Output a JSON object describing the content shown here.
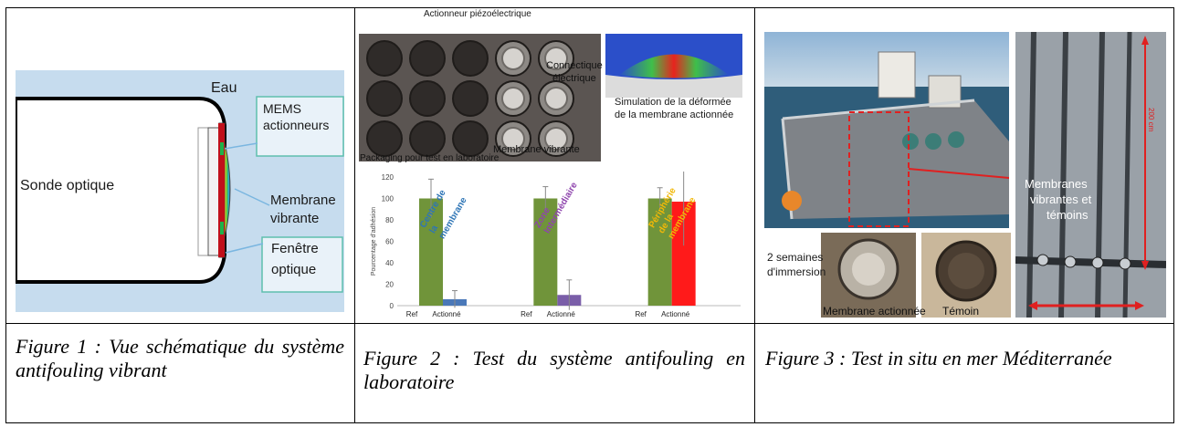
{
  "fig1": {
    "eau": "Eau",
    "sonde": "Sonde optique",
    "mems_1": "MEMS",
    "mems_2": "actionneurs",
    "membrane_1": "Membrane",
    "membrane_2": "vibrante",
    "fenetre_1": "Fenêtre",
    "fenetre_2": "optique",
    "colors": {
      "water": "#c6dcee",
      "box_border": "#5fbfae"
    }
  },
  "fig2": {
    "actionneur": "Actionneur piézoélectrique",
    "connectique_1": "Connectique",
    "connectique_2": "électrique",
    "membrane_vibrante": "Membrane vibrante",
    "packaging": "Packaging pour test en laboratoire",
    "simulation_1": "Simulation de la déformée",
    "simulation_2": "de la membrane actionnée",
    "chart_data": {
      "type": "bar",
      "ylabel": "Pourcentage d'adhésion",
      "ylim": [
        0,
        120
      ],
      "yticks": [
        "0",
        "20",
        "40",
        "60",
        "80",
        "100",
        "120"
      ],
      "groups": [
        {
          "ref_label": "Ref",
          "act_label": "Actionné",
          "ref": 100,
          "act": 6,
          "ref_err": 18,
          "act_err": 8,
          "annotation": [
            "Centre de",
            "la",
            "membrane"
          ],
          "annotation_color": "#2e75b6"
        },
        {
          "ref_label": "Ref",
          "act_label": "Actionné",
          "ref": 100,
          "act": 10,
          "ref_err": 11,
          "act_err": 14,
          "annotation": [
            "Zone",
            "Intermédiaire"
          ],
          "annotation_color": "#8e44ad"
        },
        {
          "ref_label": "Ref",
          "act_label": "Actionné",
          "ref": 100,
          "act": 97,
          "ref_err": 10,
          "act_err": 41,
          "annotation": [
            "Périphérie",
            "de la",
            "membrane"
          ],
          "annotation_color": "#f2b807"
        }
      ],
      "colors": {
        "ref": "#70943a",
        "act": [
          "#4a78b8",
          "#7a5ea8",
          "#ff1a1a"
        ]
      }
    }
  },
  "fig3": {
    "membranes_1": "Membranes",
    "membranes_2": "vibrantes et",
    "membranes_3": "témoins",
    "semaines_1": "2 semaines",
    "semaines_2": "d'immersion",
    "membrane_actionnee": "Membrane actionnée",
    "temoin": "Témoin",
    "scale": "200 cm"
  },
  "captions": {
    "c1": "Figure 1 : Vue schématique du système antifouling vibrant",
    "c2": "Figure 2 : Test du système antifouling en laboratoire",
    "c3": "Figure 3 : Test in situ en mer Méditerranée"
  }
}
